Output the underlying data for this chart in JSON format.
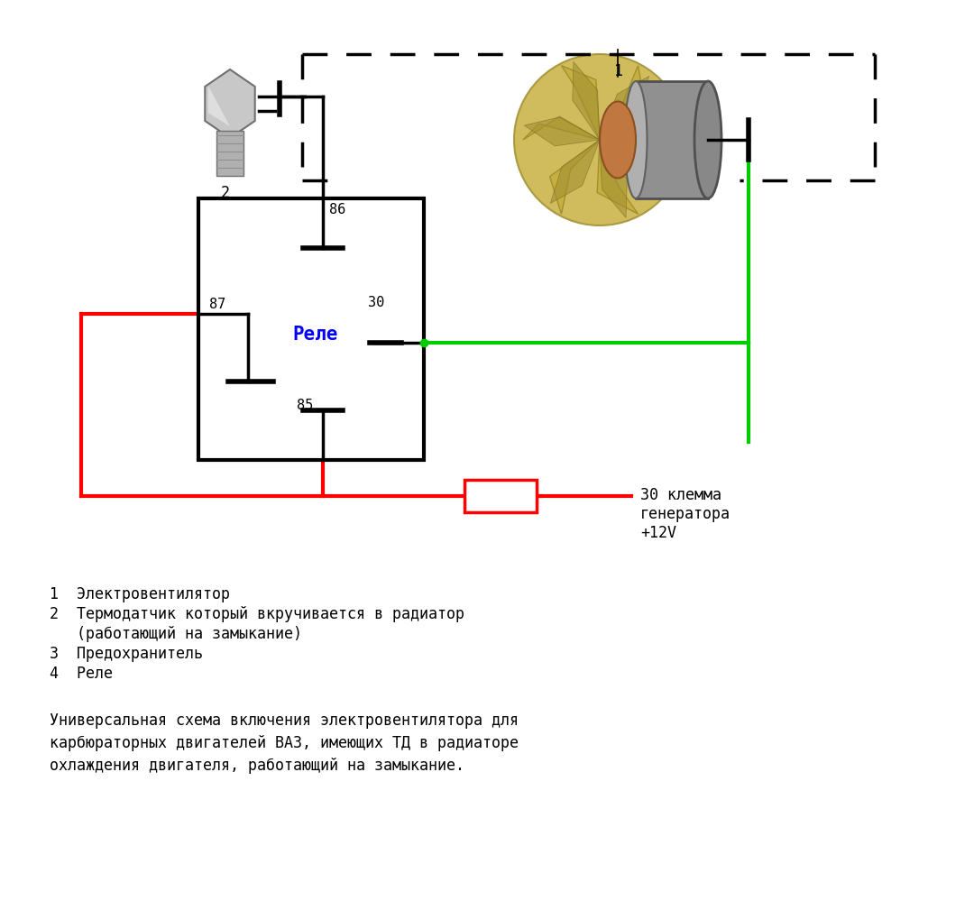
{
  "bg_color": "#ffffff",
  "relay_label": "Реле",
  "relay_label_color": "#0000ff",
  "line_color_red": "#ff0000",
  "line_color_green": "#00cc00",
  "line_color_black": "#000000",
  "text_30_klema": "30 клемма\nгенератора\n+12V",
  "legend_lines": [
    "1  Электровентилятор",
    "2  Термодатчик который вкручивается в радиатор",
    "   (работающий на замыкание)",
    "3  Предохранитель",
    "4  Реле"
  ],
  "description": "Универсальная схема включения электровентилятора для\nкарбюраторных двигателей ВАЗ, имеющих ТД в радиаторе\nохлаждения двигателя, работающий на замыкание.",
  "font_size_legend": 12,
  "font_size_desc": 12
}
